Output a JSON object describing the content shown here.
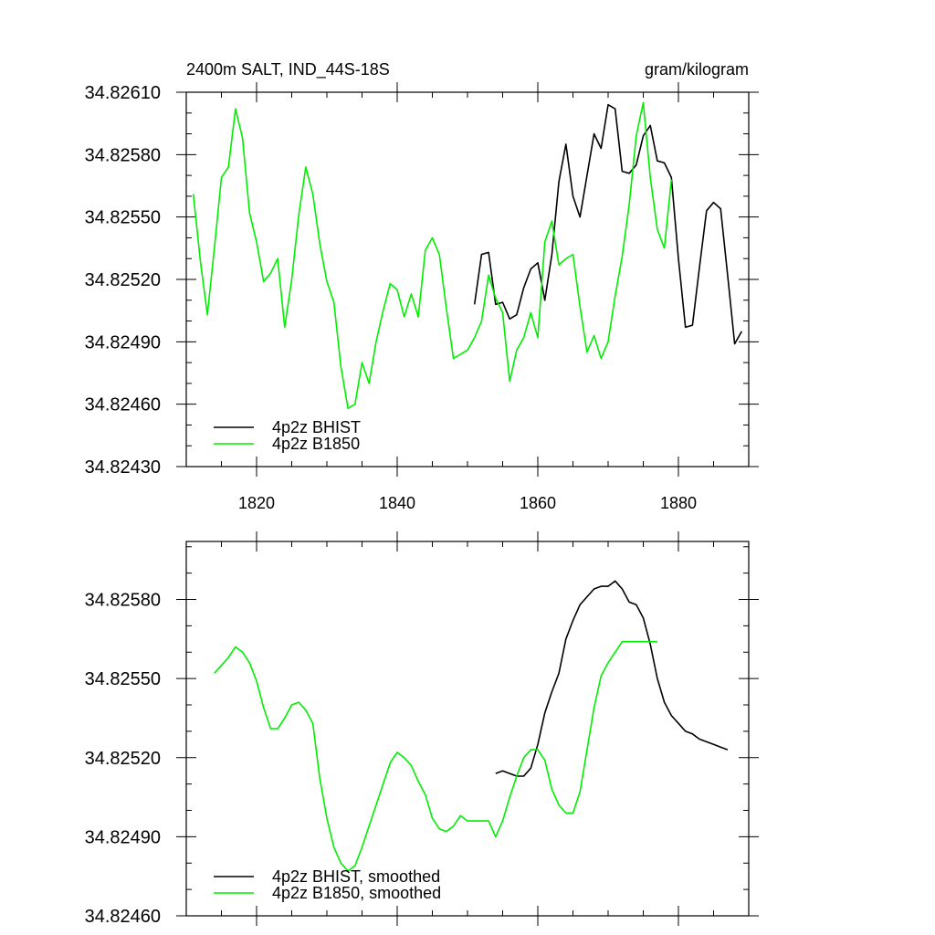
{
  "chart_data": [
    {
      "type": "line",
      "title": "2400m SALT, IND_44S-18S",
      "units": "gram/kilogram",
      "xlabel": "",
      "ylabel": "",
      "xlim": [
        1810,
        1890
      ],
      "ylim": [
        34.8243,
        34.8261
      ],
      "x_ticks": [
        1820,
        1840,
        1860,
        1880
      ],
      "x_tick_labels": [
        "1820",
        "1840",
        "1860",
        "1880"
      ],
      "y_ticks": [
        34.8243,
        34.8246,
        34.8249,
        34.8252,
        34.8255,
        34.8258,
        34.8261
      ],
      "y_tick_labels": [
        "34.82430",
        "34.82460",
        "34.82490",
        "34.82520",
        "34.82550",
        "34.82580",
        "34.82610"
      ],
      "legend_position": "bottom-left",
      "series": [
        {
          "name": "4p2z BHIST",
          "color": "#000000",
          "x": [
            1851,
            1852,
            1853,
            1854,
            1855,
            1856,
            1857,
            1858,
            1859,
            1860,
            1861,
            1862,
            1863,
            1864,
            1865,
            1866,
            1867,
            1868,
            1869,
            1870,
            1871,
            1872,
            1873,
            1874,
            1875,
            1876,
            1877,
            1878,
            1879,
            1880,
            1881,
            1882,
            1883,
            1884,
            1885,
            1886,
            1887,
            1888,
            1889
          ],
          "y": [
            34.82508,
            34.82532,
            34.82533,
            34.82508,
            34.82509,
            34.82501,
            34.82503,
            34.82516,
            34.82525,
            34.82528,
            34.8251,
            34.82532,
            34.82567,
            34.82585,
            34.8256,
            34.8255,
            34.8257,
            34.8259,
            34.82583,
            34.82604,
            34.82602,
            34.82572,
            34.82571,
            34.82575,
            34.82589,
            34.82594,
            34.82577,
            34.82576,
            34.82569,
            34.8253,
            34.82497,
            34.82498,
            34.82526,
            34.82553,
            34.82557,
            34.82554,
            34.82522,
            34.82489,
            34.82495
          ]
        },
        {
          "name": "4p2z B1850",
          "color": "#00ee00",
          "x": [
            1811,
            1812,
            1813,
            1814,
            1815,
            1816,
            1817,
            1818,
            1819,
            1820,
            1821,
            1822,
            1823,
            1824,
            1825,
            1826,
            1827,
            1828,
            1829,
            1830,
            1831,
            1832,
            1833,
            1834,
            1835,
            1836,
            1837,
            1838,
            1839,
            1840,
            1841,
            1842,
            1843,
            1844,
            1845,
            1846,
            1847,
            1848,
            1849,
            1850,
            1851,
            1852,
            1853,
            1854,
            1855,
            1856,
            1857,
            1858,
            1859,
            1860,
            1861,
            1862,
            1863,
            1864,
            1865,
            1866,
            1867,
            1868,
            1869,
            1870,
            1871,
            1872,
            1873,
            1874,
            1875,
            1876,
            1877,
            1878,
            1879
          ],
          "y": [
            34.82561,
            34.82529,
            34.82503,
            34.82535,
            34.82569,
            34.82574,
            34.82602,
            34.82588,
            34.82552,
            34.82538,
            34.82519,
            34.82523,
            34.8253,
            34.82497,
            34.8252,
            34.82551,
            34.82574,
            34.82561,
            34.82537,
            34.82519,
            34.82509,
            34.82478,
            34.82458,
            34.8246,
            34.8248,
            34.8247,
            34.8249,
            34.82505,
            34.82518,
            34.82515,
            34.82502,
            34.82513,
            34.82502,
            34.82534,
            34.8254,
            34.82532,
            34.82506,
            34.82482,
            34.82484,
            34.82486,
            34.82492,
            34.825,
            34.82522,
            34.82511,
            34.82504,
            34.82471,
            34.82486,
            34.82492,
            34.82504,
            34.82492,
            34.82538,
            34.82548,
            34.82527,
            34.8253,
            34.82532,
            34.82507,
            34.82485,
            34.82493,
            34.82482,
            34.8249,
            34.82512,
            34.82531,
            34.82556,
            34.82589,
            34.82605,
            34.82569,
            34.82544,
            34.82535,
            34.82568
          ]
        }
      ]
    },
    {
      "type": "line",
      "title": "",
      "xlabel": "",
      "ylabel": "",
      "xlim": [
        1810,
        1890
      ],
      "ylim": [
        34.8246,
        34.82602
      ],
      "x_ticks": [
        1820,
        1840,
        1860,
        1880
      ],
      "y_ticks": [
        34.8246,
        34.8249,
        34.8252,
        34.8255,
        34.8258
      ],
      "y_tick_labels": [
        "34.82460",
        "34.82490",
        "34.82520",
        "34.82550",
        "34.82580"
      ],
      "legend_position": "bottom-left",
      "series": [
        {
          "name": "4p2z BHIST, smoothed",
          "color": "#000000",
          "x": [
            1854,
            1855,
            1856,
            1857,
            1858,
            1859,
            1860,
            1861,
            1862,
            1863,
            1864,
            1865,
            1866,
            1867,
            1868,
            1869,
            1870,
            1871,
            1872,
            1873,
            1874,
            1875,
            1876,
            1877,
            1878,
            1879,
            1880,
            1881,
            1882,
            1883,
            1884,
            1885,
            1886,
            1887
          ],
          "y": [
            34.82514,
            34.82515,
            34.82514,
            34.82513,
            34.82513,
            34.82516,
            34.82525,
            34.82537,
            34.82545,
            34.82552,
            34.82565,
            34.82572,
            34.82578,
            34.82581,
            34.82584,
            34.82585,
            34.82585,
            34.82587,
            34.82584,
            34.82579,
            34.82578,
            34.82573,
            34.82563,
            34.8255,
            34.82541,
            34.82536,
            34.82533,
            34.8253,
            34.82529,
            34.82527,
            34.82526,
            34.82525,
            34.82524,
            34.82523
          ]
        },
        {
          "name": "4p2z B1850, smoothed",
          "color": "#00ee00",
          "x": [
            1814,
            1815,
            1816,
            1817,
            1818,
            1819,
            1820,
            1821,
            1822,
            1823,
            1824,
            1825,
            1826,
            1827,
            1828,
            1829,
            1830,
            1831,
            1832,
            1833,
            1834,
            1835,
            1836,
            1837,
            1838,
            1839,
            1840,
            1841,
            1842,
            1843,
            1844,
            1845,
            1846,
            1847,
            1848,
            1849,
            1850,
            1851,
            1852,
            1853,
            1854,
            1855,
            1856,
            1857,
            1858,
            1859,
            1860,
            1861,
            1862,
            1863,
            1864,
            1865,
            1866,
            1867,
            1868,
            1869,
            1870,
            1871,
            1872,
            1873,
            1874,
            1875,
            1876,
            1877
          ],
          "y": [
            34.82552,
            34.82555,
            34.82558,
            34.82562,
            34.8256,
            34.82556,
            34.82549,
            34.82539,
            34.82531,
            34.82531,
            34.82535,
            34.8254,
            34.82541,
            34.82538,
            34.82533,
            34.82512,
            34.82497,
            34.82486,
            34.8248,
            34.82477,
            34.82479,
            34.82486,
            34.82494,
            34.82502,
            34.8251,
            34.82518,
            34.82522,
            34.8252,
            34.82517,
            34.82511,
            34.82506,
            34.82497,
            34.82493,
            34.82492,
            34.82494,
            34.82498,
            34.82496,
            34.82496,
            34.82496,
            34.82496,
            34.8249,
            34.82496,
            34.82505,
            34.82513,
            34.8252,
            34.82523,
            34.82523,
            34.82519,
            34.82508,
            34.82502,
            34.82499,
            34.82499,
            34.82507,
            34.82523,
            34.82539,
            34.82551,
            34.82556,
            34.8256,
            34.82564,
            34.82564,
            34.82564,
            34.82564,
            34.82564,
            34.82564
          ]
        }
      ]
    }
  ]
}
